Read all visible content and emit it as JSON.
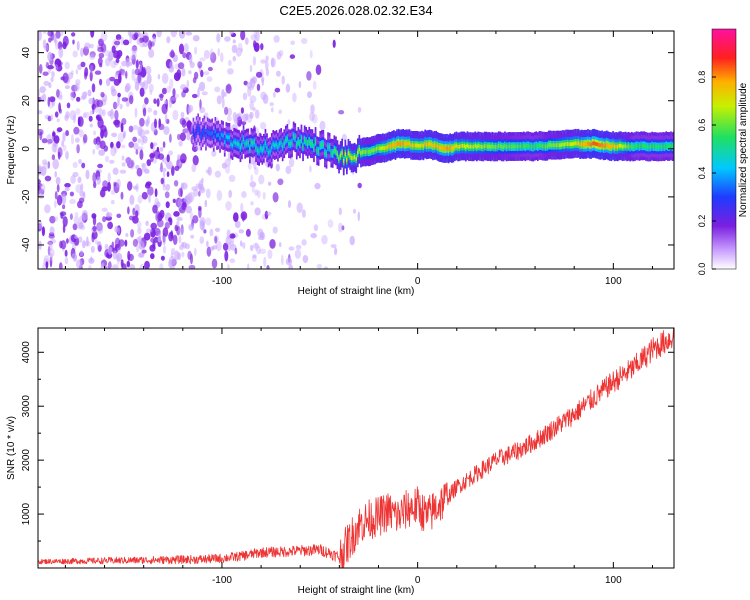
{
  "title": "C2E5.2026.028.02.32.E34",
  "colors": {
    "line": "#ee3333",
    "axis": "#000000",
    "background": "#ffffff",
    "scatter": "#7a1fe0"
  },
  "chart_data": [
    {
      "type": "heatmap",
      "name": "spectrogram",
      "xlabel": "Height of straight line (km)",
      "ylabel": "Frequency (Hz)",
      "xlim": [
        -194,
        131
      ],
      "ylim": [
        -50,
        49
      ],
      "xticks": [
        -100,
        0,
        100
      ],
      "xtick_labels": [
        "-100",
        "0",
        "100"
      ],
      "yticks": [
        -40,
        -20,
        0,
        20,
        40
      ],
      "ytick_labels": [
        "-40",
        "-20",
        "0",
        "20",
        "40"
      ],
      "grid": false,
      "colorbar": {
        "label": "Normalized spectral amplitude",
        "range": [
          0,
          1
        ],
        "ticks": [
          0.0,
          0.2,
          0.4,
          0.6,
          0.8
        ],
        "tick_labels": [
          "0.0",
          "0.2",
          "0.4",
          "0.6",
          "0.8"
        ],
        "colormap": "rainbow (white→purple→blue→cyan→green→yellow→red→magenta)"
      },
      "ridge": {
        "description": "Dominant frequency ridge (center frequency vs height)",
        "x": [
          -115,
          -105,
          -95,
          -85,
          -75,
          -65,
          -55,
          -45,
          -40,
          -35,
          -30,
          -25,
          -20,
          -15,
          -10,
          -5,
          0,
          5,
          10,
          15,
          20,
          40,
          60,
          80,
          90,
          100,
          110,
          120,
          131
        ],
        "y": [
          7,
          6,
          3,
          1,
          0,
          4,
          2,
          -1,
          -3,
          -4,
          -2,
          -1,
          0,
          1,
          2,
          2,
          1,
          2,
          1,
          0,
          1,
          1,
          1,
          2,
          2,
          1,
          1,
          1,
          1
        ],
        "amplitude": [
          0.3,
          0.35,
          0.45,
          0.5,
          0.45,
          0.5,
          0.55,
          0.5,
          0.65,
          0.7,
          0.65,
          0.6,
          0.65,
          0.75,
          0.8,
          0.75,
          0.7,
          0.75,
          0.75,
          0.8,
          0.7,
          0.6,
          0.55,
          0.7,
          0.85,
          0.75,
          0.55,
          0.55,
          0.55
        ]
      }
    },
    {
      "type": "line",
      "name": "snr",
      "xlabel": "Height of straight line (km)",
      "ylabel": "SNR (10 * v/v)",
      "xlim": [
        -194,
        131
      ],
      "ylim": [
        0,
        4450
      ],
      "xticks": [
        -100,
        0,
        100
      ],
      "xtick_labels": [
        "-100",
        "0",
        "100"
      ],
      "yticks": [
        1000,
        2000,
        3000,
        4000
      ],
      "ytick_labels": [
        "1000",
        "2000",
        "3000",
        "4000"
      ],
      "grid": false,
      "series": [
        {
          "name": "SNR",
          "x": [
            -194,
            -170,
            -150,
            -130,
            -110,
            -100,
            -90,
            -80,
            -70,
            -60,
            -50,
            -45,
            -40,
            -35,
            -30,
            -25,
            -20,
            -15,
            -10,
            -5,
            0,
            5,
            10,
            15,
            20,
            30,
            40,
            50,
            60,
            70,
            80,
            90,
            100,
            110,
            120,
            131
          ],
          "y": [
            120,
            130,
            140,
            150,
            160,
            180,
            220,
            290,
            300,
            320,
            340,
            280,
            200,
            500,
            800,
            900,
            950,
            1050,
            950,
            1100,
            1150,
            950,
            1150,
            1300,
            1500,
            1750,
            2000,
            2150,
            2350,
            2600,
            2850,
            3150,
            3450,
            3700,
            4050,
            4300
          ]
        }
      ]
    }
  ]
}
